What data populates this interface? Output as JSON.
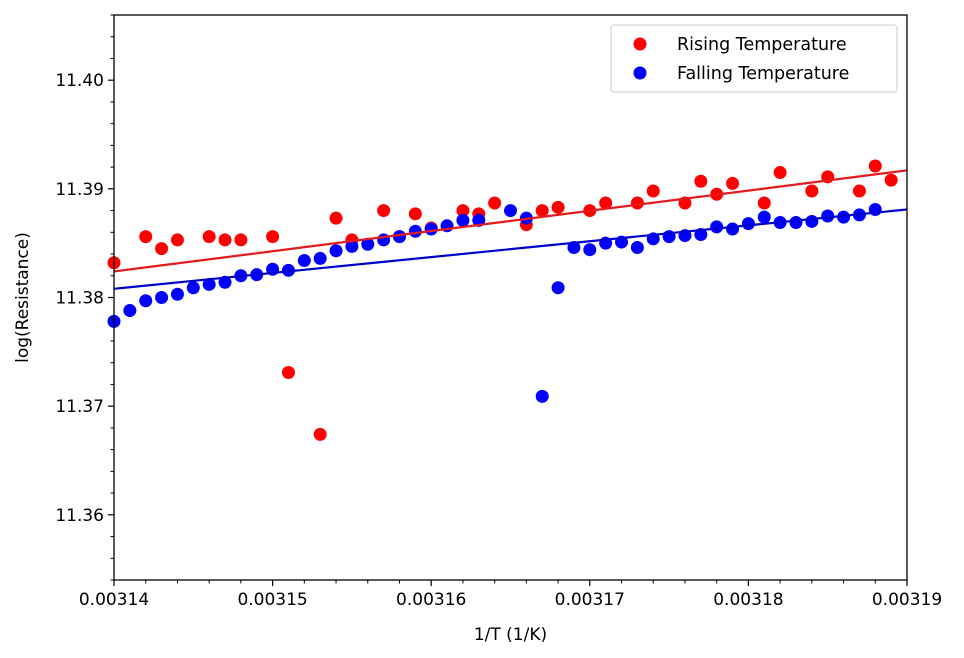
{
  "chart_data": {
    "type": "scatter",
    "xlabel": "1/T (1/K)",
    "ylabel": "log(Resistance)",
    "xlim": [
      0.00314,
      0.00319
    ],
    "ylim": [
      11.354,
      11.406
    ],
    "x_ticks": [
      0.00314,
      0.00315,
      0.00316,
      0.00317,
      0.00318,
      0.00319
    ],
    "x_tick_labels": [
      "0.00314",
      "0.00315",
      "0.00316",
      "0.00317",
      "0.00318",
      "0.00319"
    ],
    "y_ticks": [
      11.36,
      11.37,
      11.38,
      11.39,
      11.4
    ],
    "y_tick_labels": [
      "11.36",
      "11.37",
      "11.38",
      "11.39",
      "11.40"
    ],
    "grid": false,
    "legend_position": "top-right",
    "series": [
      {
        "name": "Rising Temperature",
        "color": "#ff0000",
        "line_color": "#e41a1c",
        "fit_line": {
          "x": [
            0.00314,
            0.00319
          ],
          "y": [
            11.3824,
            11.3917
          ]
        },
        "points": [
          [
            0.00314,
            11.3832
          ],
          [
            0.003142,
            11.3856
          ],
          [
            0.003143,
            11.3845
          ],
          [
            0.003144,
            11.3853
          ],
          [
            0.003146,
            11.3856
          ],
          [
            0.003147,
            11.3853
          ],
          [
            0.003148,
            11.3853
          ],
          [
            0.00315,
            11.3856
          ],
          [
            0.003151,
            11.3731
          ],
          [
            0.003153,
            11.3674
          ],
          [
            0.003154,
            11.3873
          ],
          [
            0.003155,
            11.3853
          ],
          [
            0.003157,
            11.388
          ],
          [
            0.003158,
            11.3856
          ],
          [
            0.003159,
            11.3877
          ],
          [
            0.00316,
            11.3864
          ],
          [
            0.003162,
            11.388
          ],
          [
            0.003163,
            11.3877
          ],
          [
            0.003164,
            11.3887
          ],
          [
            0.003166,
            11.3867
          ],
          [
            0.003167,
            11.388
          ],
          [
            0.003168,
            11.3883
          ],
          [
            0.00317,
            11.388
          ],
          [
            0.003171,
            11.3887
          ],
          [
            0.003173,
            11.3887
          ],
          [
            0.003174,
            11.3898
          ],
          [
            0.003176,
            11.3887
          ],
          [
            0.003177,
            11.3907
          ],
          [
            0.003178,
            11.3895
          ],
          [
            0.003179,
            11.3905
          ],
          [
            0.003181,
            11.3887
          ],
          [
            0.003182,
            11.3915
          ],
          [
            0.003184,
            11.3898
          ],
          [
            0.003185,
            11.3911
          ],
          [
            0.003187,
            11.3898
          ],
          [
            0.003188,
            11.3921
          ],
          [
            0.003189,
            11.3908
          ]
        ]
      },
      {
        "name": "Falling Temperature",
        "color": "#0000ff",
        "line_color": "#0000cc",
        "fit_line": {
          "x": [
            0.00314,
            0.00319
          ],
          "y": [
            11.3808,
            11.3881
          ]
        },
        "points": [
          [
            0.00314,
            11.3778
          ],
          [
            0.003141,
            11.3788
          ],
          [
            0.003142,
            11.3797
          ],
          [
            0.003143,
            11.38
          ],
          [
            0.003144,
            11.3803
          ],
          [
            0.003145,
            11.3809
          ],
          [
            0.003146,
            11.3812
          ],
          [
            0.003147,
            11.3814
          ],
          [
            0.003148,
            11.382
          ],
          [
            0.003149,
            11.3821
          ],
          [
            0.00315,
            11.3826
          ],
          [
            0.003151,
            11.3825
          ],
          [
            0.003152,
            11.3834
          ],
          [
            0.003153,
            11.3836
          ],
          [
            0.003154,
            11.3843
          ],
          [
            0.003155,
            11.3847
          ],
          [
            0.003156,
            11.3849
          ],
          [
            0.003157,
            11.3853
          ],
          [
            0.003158,
            11.3856
          ],
          [
            0.003159,
            11.3861
          ],
          [
            0.00316,
            11.3863
          ],
          [
            0.003161,
            11.3866
          ],
          [
            0.003162,
            11.3871
          ],
          [
            0.003163,
            11.3871
          ],
          [
            0.003165,
            11.388
          ],
          [
            0.003166,
            11.3873
          ],
          [
            0.003167,
            11.3709
          ],
          [
            0.003168,
            11.3809
          ],
          [
            0.003169,
            11.3846
          ],
          [
            0.00317,
            11.3844
          ],
          [
            0.003171,
            11.385
          ],
          [
            0.003172,
            11.3851
          ],
          [
            0.003173,
            11.3846
          ],
          [
            0.003174,
            11.3854
          ],
          [
            0.003175,
            11.3856
          ],
          [
            0.003176,
            11.3857
          ],
          [
            0.003177,
            11.3858
          ],
          [
            0.003178,
            11.3865
          ],
          [
            0.003179,
            11.3863
          ],
          [
            0.00318,
            11.3868
          ],
          [
            0.003181,
            11.3874
          ],
          [
            0.003182,
            11.3869
          ],
          [
            0.003183,
            11.3869
          ],
          [
            0.003184,
            11.387
          ],
          [
            0.003185,
            11.3875
          ],
          [
            0.003186,
            11.3874
          ],
          [
            0.003187,
            11.3876
          ],
          [
            0.003188,
            11.3881
          ]
        ]
      }
    ]
  }
}
